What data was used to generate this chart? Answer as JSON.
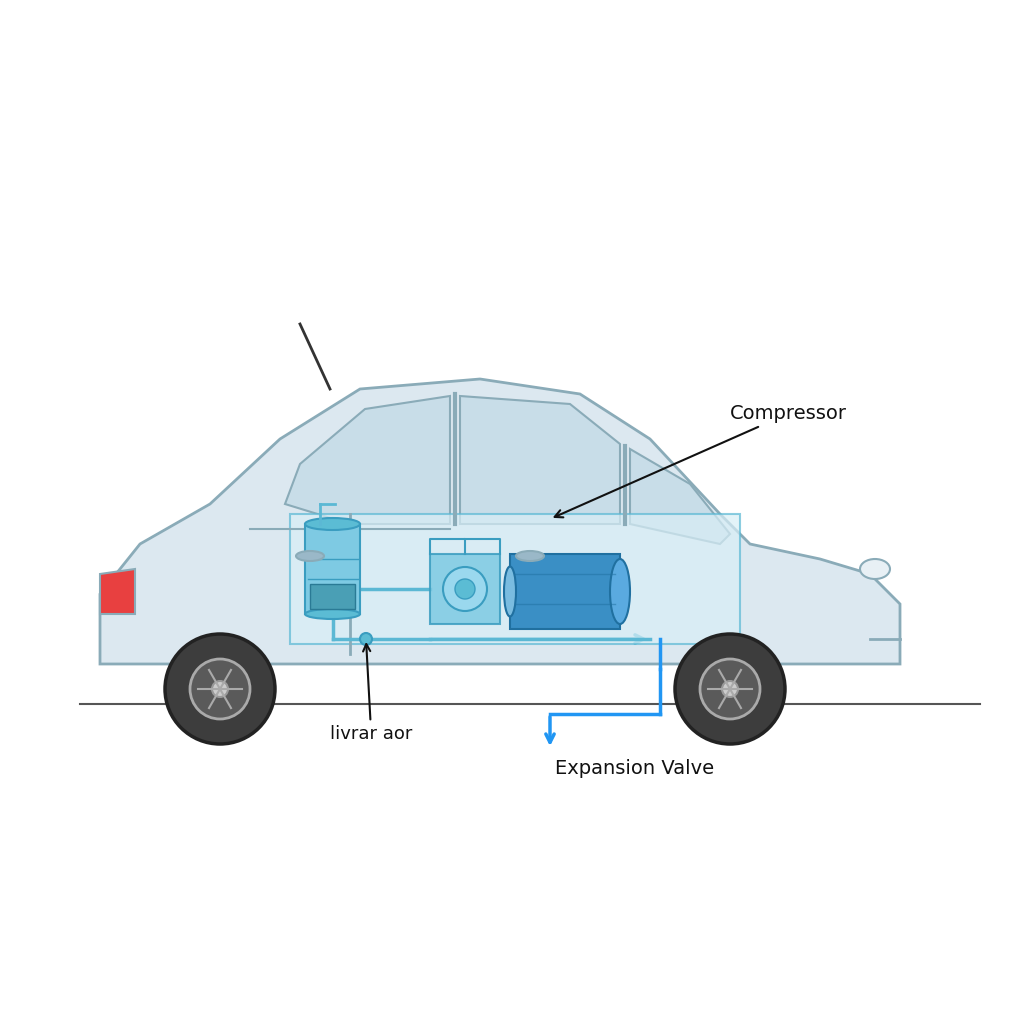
{
  "background_color": "#ffffff",
  "car_body_color": "#dce8f0",
  "car_outline_color": "#8aabb8",
  "wheel_color": "#3d3d3d",
  "ac_component_color": "#7ecae3",
  "ac_pipe_color": "#5bb8d4",
  "label_compressor": "Compressor",
  "label_expansion": "Expansion Valve",
  "label_livrar": "livrar aor",
  "arrow_color": "#000000",
  "blue_arrow_color": "#2196f3",
  "ground_color": "#555555",
  "tail_light_color": "#e84040",
  "window_color": "#c8dde8"
}
